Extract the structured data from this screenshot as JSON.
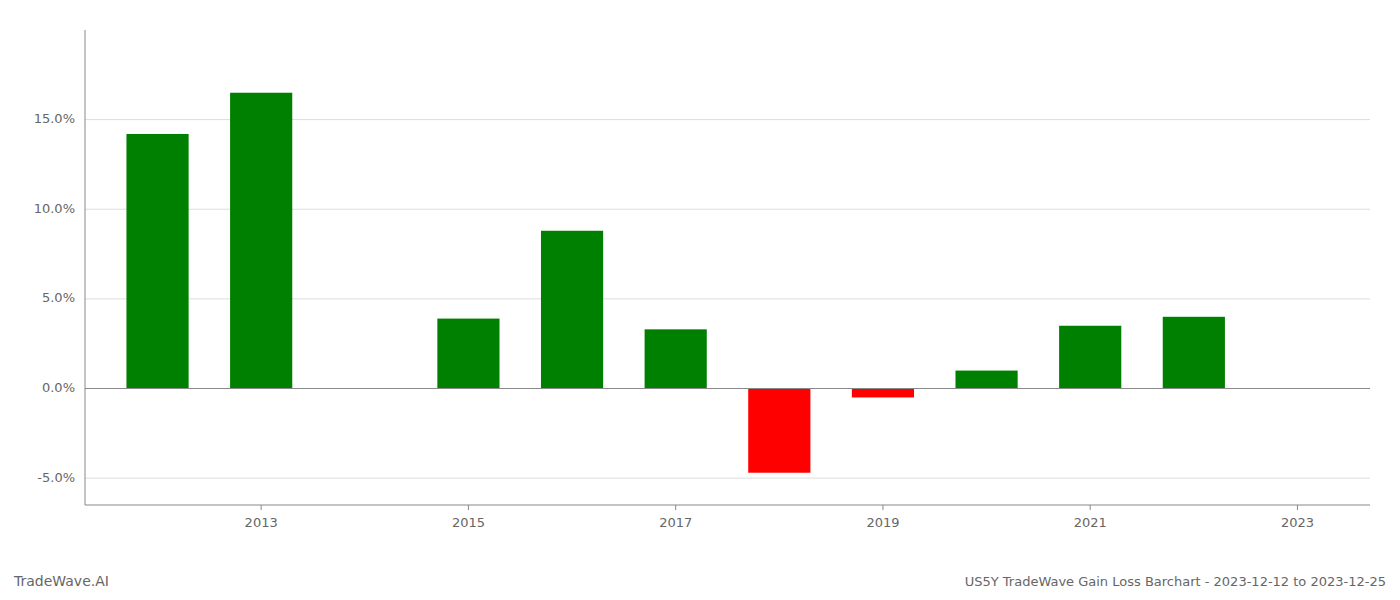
{
  "chart_data": {
    "type": "bar",
    "title": "US5Y TradeWave Gain Loss Barchart - 2023-12-12 to 2023-12-25",
    "annotations": [
      "TradeWave.AI"
    ],
    "x": [
      2012,
      2013,
      2015,
      2016,
      2017,
      2018,
      2019,
      2020,
      2021,
      2022
    ],
    "values": [
      0.142,
      0.165,
      0.039,
      0.088,
      0.033,
      -0.047,
      -0.005,
      0.01,
      0.035,
      0.04
    ],
    "colors": [
      "#008000",
      "#008000",
      "#008000",
      "#008000",
      "#008000",
      "#ff0000",
      "#ff0000",
      "#008000",
      "#008000",
      "#008000"
    ],
    "xlim": [
      2011.3,
      2023.7
    ],
    "ylim": [
      -0.065,
      0.2
    ],
    "xticks": [
      2013,
      2015,
      2017,
      2019,
      2021,
      2023
    ],
    "yticks": [
      {
        "value": -0.05,
        "label": "-5.0%"
      },
      {
        "value": 0.0,
        "label": "0.0%"
      },
      {
        "value": 0.05,
        "label": "5.0%"
      },
      {
        "value": 0.1,
        "label": "10.0%"
      },
      {
        "value": 0.15,
        "label": "15.0%"
      }
    ],
    "grid": true
  }
}
